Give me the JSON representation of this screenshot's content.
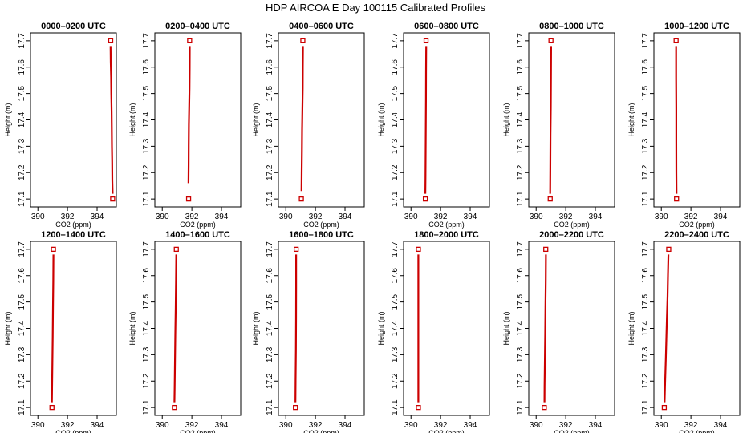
{
  "figure": {
    "title": "HDP AIRCOA E  Day 100115  Calibrated Profiles"
  },
  "colors": {
    "profile": "#cc0000",
    "axis": "#000000",
    "background": "#ffffff"
  },
  "chart_data": {
    "type": "line",
    "xlabel": "CO2 (ppm)",
    "ylabel": "Height (m)",
    "xlim": [
      389.5,
      395.3
    ],
    "ylim": [
      17.07,
      17.73
    ],
    "x_ticks": [
      390,
      392,
      394
    ],
    "y_ticks": [
      17.1,
      17.2,
      17.3,
      17.4,
      17.5,
      17.6,
      17.7
    ],
    "grid": false,
    "legend": "none",
    "panels": [
      {
        "title": "0000–0200 UTC",
        "top": {
          "x": 394.92,
          "y": 17.7
        },
        "bottom": {
          "x": 395.05,
          "y": 17.1
        },
        "profile": [
          {
            "x": 394.91,
            "y": 17.68
          },
          {
            "x": 394.92,
            "y": 17.62
          },
          {
            "x": 394.95,
            "y": 17.56
          },
          {
            "x": 394.96,
            "y": 17.5
          },
          {
            "x": 394.98,
            "y": 17.43
          },
          {
            "x": 394.99,
            "y": 17.37
          },
          {
            "x": 395.0,
            "y": 17.3
          },
          {
            "x": 395.02,
            "y": 17.24
          },
          {
            "x": 395.03,
            "y": 17.17
          },
          {
            "x": 395.05,
            "y": 17.12
          }
        ]
      },
      {
        "title": "0200–0400 UTC",
        "top": {
          "x": 391.85,
          "y": 17.7
        },
        "bottom": {
          "x": 391.78,
          "y": 17.1
        },
        "profile": [
          {
            "x": 391.86,
            "y": 17.68
          },
          {
            "x": 391.85,
            "y": 17.6
          },
          {
            "x": 391.84,
            "y": 17.52
          },
          {
            "x": 391.82,
            "y": 17.45
          },
          {
            "x": 391.8,
            "y": 17.38
          },
          {
            "x": 391.79,
            "y": 17.3
          },
          {
            "x": 391.78,
            "y": 17.23
          },
          {
            "x": 391.77,
            "y": 17.16
          }
        ]
      },
      {
        "title": "0400–0600 UTC",
        "top": {
          "x": 391.15,
          "y": 17.7
        },
        "bottom": {
          "x": 391.05,
          "y": 17.1
        },
        "profile": [
          {
            "x": 391.16,
            "y": 17.68
          },
          {
            "x": 391.15,
            "y": 17.6
          },
          {
            "x": 391.14,
            "y": 17.52
          },
          {
            "x": 391.12,
            "y": 17.44
          },
          {
            "x": 391.1,
            "y": 17.36
          },
          {
            "x": 391.09,
            "y": 17.28
          },
          {
            "x": 391.07,
            "y": 17.2
          },
          {
            "x": 391.06,
            "y": 17.13
          }
        ]
      },
      {
        "title": "0600–0800 UTC",
        "top": {
          "x": 391.02,
          "y": 17.7
        },
        "bottom": {
          "x": 390.97,
          "y": 17.1
        },
        "profile": [
          {
            "x": 391.03,
            "y": 17.68
          },
          {
            "x": 391.02,
            "y": 17.58
          },
          {
            "x": 391.01,
            "y": 17.48
          },
          {
            "x": 391.0,
            "y": 17.38
          },
          {
            "x": 390.99,
            "y": 17.28
          },
          {
            "x": 390.98,
            "y": 17.18
          },
          {
            "x": 390.97,
            "y": 17.12
          }
        ]
      },
      {
        "title": "0800–1000 UTC",
        "top": {
          "x": 391.0,
          "y": 17.7
        },
        "bottom": {
          "x": 390.95,
          "y": 17.1
        },
        "profile": [
          {
            "x": 391.01,
            "y": 17.68
          },
          {
            "x": 391.0,
            "y": 17.56
          },
          {
            "x": 390.99,
            "y": 17.45
          },
          {
            "x": 390.97,
            "y": 17.34
          },
          {
            "x": 390.96,
            "y": 17.22
          },
          {
            "x": 390.95,
            "y": 17.12
          }
        ]
      },
      {
        "title": "1000–1200 UTC",
        "top": {
          "x": 391.0,
          "y": 17.7
        },
        "bottom": {
          "x": 391.03,
          "y": 17.1
        },
        "profile": [
          {
            "x": 391.0,
            "y": 17.68
          },
          {
            "x": 391.0,
            "y": 17.56
          },
          {
            "x": 391.01,
            "y": 17.44
          },
          {
            "x": 391.01,
            "y": 17.32
          },
          {
            "x": 391.02,
            "y": 17.2
          },
          {
            "x": 391.03,
            "y": 17.12
          }
        ]
      },
      {
        "title": "1200–1400 UTC",
        "top": {
          "x": 391.05,
          "y": 17.7
        },
        "bottom": {
          "x": 390.95,
          "y": 17.1
        },
        "profile": [
          {
            "x": 391.05,
            "y": 17.68
          },
          {
            "x": 391.04,
            "y": 17.58
          },
          {
            "x": 391.02,
            "y": 17.47
          },
          {
            "x": 391.0,
            "y": 17.37
          },
          {
            "x": 390.98,
            "y": 17.27
          },
          {
            "x": 390.96,
            "y": 17.17
          },
          {
            "x": 390.95,
            "y": 17.12
          }
        ]
      },
      {
        "title": "1400–1600 UTC",
        "top": {
          "x": 390.95,
          "y": 17.7
        },
        "bottom": {
          "x": 390.82,
          "y": 17.1
        },
        "profile": [
          {
            "x": 390.95,
            "y": 17.68
          },
          {
            "x": 390.93,
            "y": 17.58
          },
          {
            "x": 390.91,
            "y": 17.48
          },
          {
            "x": 390.88,
            "y": 17.38
          },
          {
            "x": 390.86,
            "y": 17.28
          },
          {
            "x": 390.84,
            "y": 17.18
          },
          {
            "x": 390.82,
            "y": 17.12
          }
        ]
      },
      {
        "title": "1600–1800 UTC",
        "top": {
          "x": 390.7,
          "y": 17.7
        },
        "bottom": {
          "x": 390.65,
          "y": 17.1
        },
        "profile": [
          {
            "x": 390.7,
            "y": 17.68
          },
          {
            "x": 390.7,
            "y": 17.56
          },
          {
            "x": 390.69,
            "y": 17.44
          },
          {
            "x": 390.68,
            "y": 17.32
          },
          {
            "x": 390.66,
            "y": 17.2
          },
          {
            "x": 390.65,
            "y": 17.12
          }
        ]
      },
      {
        "title": "1800–2000 UTC",
        "top": {
          "x": 390.5,
          "y": 17.7
        },
        "bottom": {
          "x": 390.5,
          "y": 17.1
        },
        "profile": [
          {
            "x": 390.5,
            "y": 17.68
          },
          {
            "x": 390.5,
            "y": 17.12
          }
        ]
      },
      {
        "title": "2000–2200 UTC",
        "top": {
          "x": 390.65,
          "y": 17.7
        },
        "bottom": {
          "x": 390.55,
          "y": 17.1
        },
        "profile": [
          {
            "x": 390.66,
            "y": 17.68
          },
          {
            "x": 390.65,
            "y": 17.58
          },
          {
            "x": 390.63,
            "y": 17.48
          },
          {
            "x": 390.61,
            "y": 17.38
          },
          {
            "x": 390.59,
            "y": 17.28
          },
          {
            "x": 390.57,
            "y": 17.18
          },
          {
            "x": 390.56,
            "y": 17.12
          }
        ]
      },
      {
        "title": "2200–2400 UTC",
        "top": {
          "x": 390.5,
          "y": 17.7
        },
        "bottom": {
          "x": 390.2,
          "y": 17.1
        },
        "profile": [
          {
            "x": 390.48,
            "y": 17.68
          },
          {
            "x": 390.45,
            "y": 17.6
          },
          {
            "x": 390.42,
            "y": 17.52
          },
          {
            "x": 390.38,
            "y": 17.44
          },
          {
            "x": 390.34,
            "y": 17.36
          },
          {
            "x": 390.3,
            "y": 17.28
          },
          {
            "x": 390.26,
            "y": 17.2
          },
          {
            "x": 390.22,
            "y": 17.12
          }
        ]
      }
    ]
  }
}
